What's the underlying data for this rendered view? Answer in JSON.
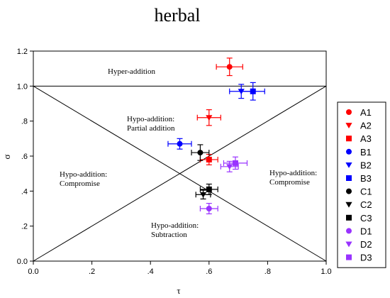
{
  "chart_data": {
    "type": "scatter",
    "title": "herbal",
    "xlabel": "τ",
    "ylabel": "σ",
    "xlim": [
      0.0,
      1.0
    ],
    "ylim": [
      0.0,
      1.2
    ],
    "x_ticks": [
      0.0,
      0.2,
      0.4,
      0.6,
      0.8,
      1.0
    ],
    "x_tick_labels": [
      "0.0",
      ".2",
      ".4",
      ".6",
      ".8",
      "1.0"
    ],
    "y_ticks": [
      0.0,
      0.2,
      0.4,
      0.6,
      0.8,
      1.0,
      1.2
    ],
    "y_tick_labels": [
      "0.0",
      ".2",
      ".4",
      ".6",
      ".8",
      "1.0",
      "1.2"
    ],
    "grid": false,
    "legend_placement": "right",
    "region_labels": [
      {
        "text": [
          "Hyper-addition"
        ]
      },
      {
        "text": [
          "Hypo-addition:",
          "Partial addition"
        ]
      },
      {
        "text": [
          "Hypo-addition:",
          "Compromise"
        ]
      },
      {
        "text": [
          "Hypo-addition:",
          "Compromise"
        ]
      },
      {
        "text": [
          "Hypo-addition:",
          "Subtraction"
        ]
      }
    ],
    "series": [
      {
        "name": "A1",
        "marker": "circle",
        "color": "#ff0000",
        "x": 0.67,
        "y": 1.11,
        "xerr": 0.045,
        "yerr": 0.05
      },
      {
        "name": "A2",
        "marker": "triangle",
        "color": "#ff0000",
        "x": 0.6,
        "y": 0.82,
        "xerr": 0.04,
        "yerr": 0.045
      },
      {
        "name": "A3",
        "marker": "square",
        "color": "#ff0000",
        "x": 0.6,
        "y": 0.58,
        "xerr": 0.03,
        "yerr": 0.03
      },
      {
        "name": "B1",
        "marker": "circle",
        "color": "#0000ff",
        "x": 0.5,
        "y": 0.67,
        "xerr": 0.04,
        "yerr": 0.03
      },
      {
        "name": "B2",
        "marker": "triangle",
        "color": "#0000ff",
        "x": 0.71,
        "y": 0.97,
        "xerr": 0.04,
        "yerr": 0.04
      },
      {
        "name": "B3",
        "marker": "square",
        "color": "#0000ff",
        "x": 0.75,
        "y": 0.97,
        "xerr": 0.04,
        "yerr": 0.05
      },
      {
        "name": "C1",
        "marker": "circle",
        "color": "#000000",
        "x": 0.57,
        "y": 0.62,
        "xerr": 0.03,
        "yerr": 0.045
      },
      {
        "name": "C2",
        "marker": "triangle",
        "color": "#000000",
        "x": 0.58,
        "y": 0.38,
        "xerr": 0.025,
        "yerr": 0.025
      },
      {
        "name": "C3",
        "marker": "square",
        "color": "#000000",
        "x": 0.6,
        "y": 0.41,
        "xerr": 0.03,
        "yerr": 0.03
      },
      {
        "name": "D1",
        "marker": "circle",
        "color": "#9933ff",
        "x": 0.6,
        "y": 0.3,
        "xerr": 0.03,
        "yerr": 0.03
      },
      {
        "name": "D2",
        "marker": "triangle",
        "color": "#9933ff",
        "x": 0.67,
        "y": 0.54,
        "xerr": 0.03,
        "yerr": 0.03
      },
      {
        "name": "D3",
        "marker": "square",
        "color": "#9933ff",
        "x": 0.69,
        "y": 0.56,
        "xerr": 0.04,
        "yerr": 0.035
      }
    ]
  }
}
